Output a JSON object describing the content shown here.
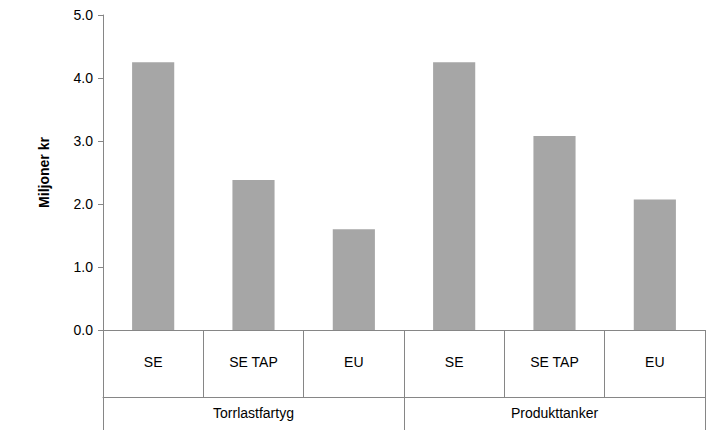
{
  "chart_data": {
    "type": "bar",
    "y_label": "Miljoner kr",
    "groups": [
      {
        "name": "Torrlastfartyg",
        "categories": [
          "SE",
          "SE TAP",
          "EU"
        ]
      },
      {
        "name": "Produkttanker",
        "categories": [
          "SE",
          "SE TAP",
          "EU"
        ]
      }
    ],
    "values": [
      4.25,
      2.38,
      1.6,
      4.25,
      3.08,
      2.07
    ],
    "color": "#a6a6a6",
    "ylim": [
      0,
      5
    ],
    "yticks": [
      {
        "value": 0,
        "label": "0.0"
      },
      {
        "value": 1,
        "label": "1.0"
      },
      {
        "value": 2,
        "label": "2.0"
      },
      {
        "value": 3,
        "label": "3.0"
      },
      {
        "value": 4,
        "label": "4.0"
      },
      {
        "value": 5,
        "label": "5.0"
      }
    ],
    "grid": false
  }
}
